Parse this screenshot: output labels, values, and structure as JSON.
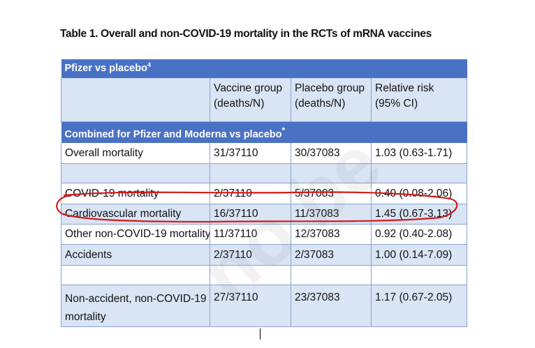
{
  "title": "Table 1. Overall and non-COVID-19 mortality in the RCTs of mRNA vaccines",
  "table": {
    "section1": "Pfizer vs placebo",
    "section1_sup": "4",
    "header": {
      "col1": "",
      "col2_line1": "Vaccine group",
      "col2_line2": "(deaths/N)",
      "col3_line1": "Placebo group",
      "col3_line2": "(deaths/N)",
      "col4_line1": "Relative risk",
      "col4_line2": "(95% CI)"
    },
    "section2": "Combined for Pfizer and Moderna vs placebo",
    "section2_sup": "*",
    "rows": [
      {
        "label": "Overall mortality",
        "vaccine": "31/37110",
        "placebo": "30/37083",
        "rr": "1.03 (0.63-1.71)"
      },
      {
        "label": "",
        "vaccine": "",
        "placebo": "",
        "rr": ""
      },
      {
        "label": "COVID-19 mortality",
        "vaccine": "2/37110",
        "placebo": "5/37083",
        "rr": "0.40 (0.08-2.06)"
      },
      {
        "label": "Cardiovascular mortality",
        "vaccine": "16/37110",
        "placebo": "11/37083",
        "rr": "1.45 (0.67-3.13)"
      },
      {
        "label": "Other non-COVID-19 mortality",
        "vaccine": "11/37110",
        "placebo": "12/37083",
        "rr": "0.92 (0.40-2.08)"
      },
      {
        "label": "Accidents",
        "vaccine": "2/37110",
        "placebo": "2/37083",
        "rr": "1.00 (0.14-7.09)"
      },
      {
        "label": "",
        "vaccine": "",
        "placebo": "",
        "rr": ""
      },
      {
        "label": "Non-accident, non-COVID-19 mortality",
        "vaccine": "27/37110",
        "placebo": "23/37083",
        "rr": "1.17 (0.67-2.05)"
      }
    ]
  },
  "watermark": "no.be",
  "colors": {
    "header_bar": "#4a72c4",
    "row_light": "#d9e4f4",
    "annotation": "#d11a1a"
  }
}
